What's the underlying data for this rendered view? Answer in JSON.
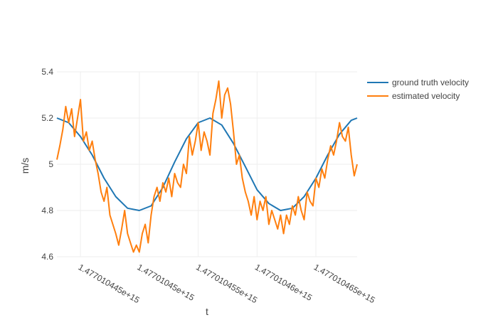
{
  "chart_data": {
    "type": "line",
    "title": "",
    "xlabel": "t",
    "ylabel": "m/s",
    "x_unit": "microseconds since epoch",
    "xlim": [
      1477010443000000,
      1477010468500000
    ],
    "ylim": [
      4.6,
      5.4
    ],
    "grid": true,
    "legend_position": "top-right",
    "x_ticks": [
      {
        "value": 1477010445000000,
        "label": "1.477010445e+15"
      },
      {
        "value": 1477010450000000,
        "label": "1.47701045e+15"
      },
      {
        "value": 1477010455000000,
        "label": "1.477010455e+15"
      },
      {
        "value": 1477010460000000,
        "label": "1.47701046e+15"
      },
      {
        "value": 1477010465000000,
        "label": "1.477010465e+15"
      }
    ],
    "y_ticks": [
      {
        "value": 4.6,
        "label": "4.6"
      },
      {
        "value": 4.8,
        "label": "4.8"
      },
      {
        "value": 5.0,
        "label": "5"
      },
      {
        "value": 5.2,
        "label": "5.2"
      },
      {
        "value": 5.4,
        "label": "5.4"
      }
    ],
    "series": [
      {
        "name": "ground truth velocity",
        "color": "#1f77b4",
        "x": [
          1477010443000000,
          1477010444000000,
          1477010445000000,
          1477010446000000,
          1477010447000000,
          1477010448000000,
          1477010449000000,
          1477010450000000,
          1477010451000000,
          1477010452000000,
          1477010453000000,
          1477010454000000,
          1477010455000000,
          1477010456000000,
          1477010457000000,
          1477010458000000,
          1477010459000000,
          1477010460000000,
          1477010461000000,
          1477010462000000,
          1477010463000000,
          1477010464000000,
          1477010465000000,
          1477010466000000,
          1477010467000000,
          1477010468000000,
          1477010468500000
        ],
        "y": [
          5.2,
          5.18,
          5.12,
          5.04,
          4.94,
          4.86,
          4.81,
          4.8,
          4.82,
          4.9,
          5.01,
          5.11,
          5.18,
          5.2,
          5.17,
          5.09,
          4.99,
          4.89,
          4.83,
          4.8,
          4.81,
          4.86,
          4.94,
          5.04,
          5.13,
          5.19,
          5.2
        ]
      },
      {
        "name": "estimated velocity",
        "color": "#ff7f0e",
        "x": [
          1477010443000000,
          1477010443250000,
          1477010443500000,
          1477010443750000,
          1477010444000000,
          1477010444250000,
          1477010444500000,
          1477010444750000,
          1477010445000000,
          1477010445250000,
          1477010445500000,
          1477010445750000,
          1477010446000000,
          1477010446250000,
          1477010446500000,
          1477010446750000,
          1477010447000000,
          1477010447250000,
          1477010447500000,
          1477010447750000,
          1477010448000000,
          1477010448250000,
          1477010448500000,
          1477010448750000,
          1477010449000000,
          1477010449250000,
          1477010449500000,
          1477010449750000,
          1477010450000000,
          1477010450250000,
          1477010450500000,
          1477010450750000,
          1477010451000000,
          1477010451250000,
          1477010451500000,
          1477010451750000,
          1477010452000000,
          1477010452250000,
          1477010452500000,
          1477010452750000,
          1477010453000000,
          1477010453250000,
          1477010453500000,
          1477010453750000,
          1477010454000000,
          1477010454250000,
          1477010454500000,
          1477010454750000,
          1477010455000000,
          1477010455250000,
          1477010455500000,
          1477010455750000,
          1477010456000000,
          1477010456250000,
          1477010456500000,
          1477010456750000,
          1477010457000000,
          1477010457250000,
          1477010457500000,
          1477010457750000,
          1477010458000000,
          1477010458250000,
          1477010458500000,
          1477010458750000,
          1477010459000000,
          1477010459250000,
          1477010459500000,
          1477010459750000,
          1477010460000000,
          1477010460250000,
          1477010460500000,
          1477010460750000,
          1477010461000000,
          1477010461250000,
          1477010461500000,
          1477010461750000,
          1477010462000000,
          1477010462250000,
          1477010462500000,
          1477010462750000,
          1477010463000000,
          1477010463250000,
          1477010463500000,
          1477010463750000,
          1477010464000000,
          1477010464250000,
          1477010464500000,
          1477010464750000,
          1477010465000000,
          1477010465250000,
          1477010465500000,
          1477010465750000,
          1477010466000000,
          1477010466250000,
          1477010466500000,
          1477010466750000,
          1477010467000000,
          1477010467250000,
          1477010467500000,
          1477010467750000,
          1477010468000000,
          1477010468250000,
          1477010468500000
        ],
        "y": [
          5.02,
          5.08,
          5.15,
          5.25,
          5.18,
          5.24,
          5.12,
          5.2,
          5.28,
          5.1,
          5.14,
          5.06,
          5.1,
          5.02,
          4.96,
          4.88,
          4.84,
          4.9,
          4.78,
          4.74,
          4.7,
          4.65,
          4.72,
          4.8,
          4.7,
          4.66,
          4.62,
          4.65,
          4.62,
          4.7,
          4.74,
          4.66,
          4.78,
          4.86,
          4.9,
          4.84,
          4.92,
          4.88,
          4.94,
          4.86,
          4.96,
          4.92,
          4.9,
          5.0,
          4.96,
          5.12,
          5.04,
          5.1,
          5.18,
          5.06,
          5.14,
          5.1,
          5.04,
          5.22,
          5.28,
          5.36,
          5.2,
          5.3,
          5.33,
          5.26,
          5.14,
          5.0,
          5.04,
          4.94,
          4.88,
          4.84,
          4.78,
          4.86,
          4.76,
          4.84,
          4.8,
          4.86,
          4.74,
          4.8,
          4.76,
          4.72,
          4.78,
          4.7,
          4.78,
          4.74,
          4.82,
          4.78,
          4.86,
          4.8,
          4.76,
          4.88,
          4.84,
          4.82,
          4.94,
          4.9,
          4.98,
          4.94,
          5.02,
          5.08,
          5.04,
          5.1,
          5.18,
          5.12,
          5.1,
          5.16,
          5.04,
          4.95,
          5.0
        ]
      }
    ]
  }
}
